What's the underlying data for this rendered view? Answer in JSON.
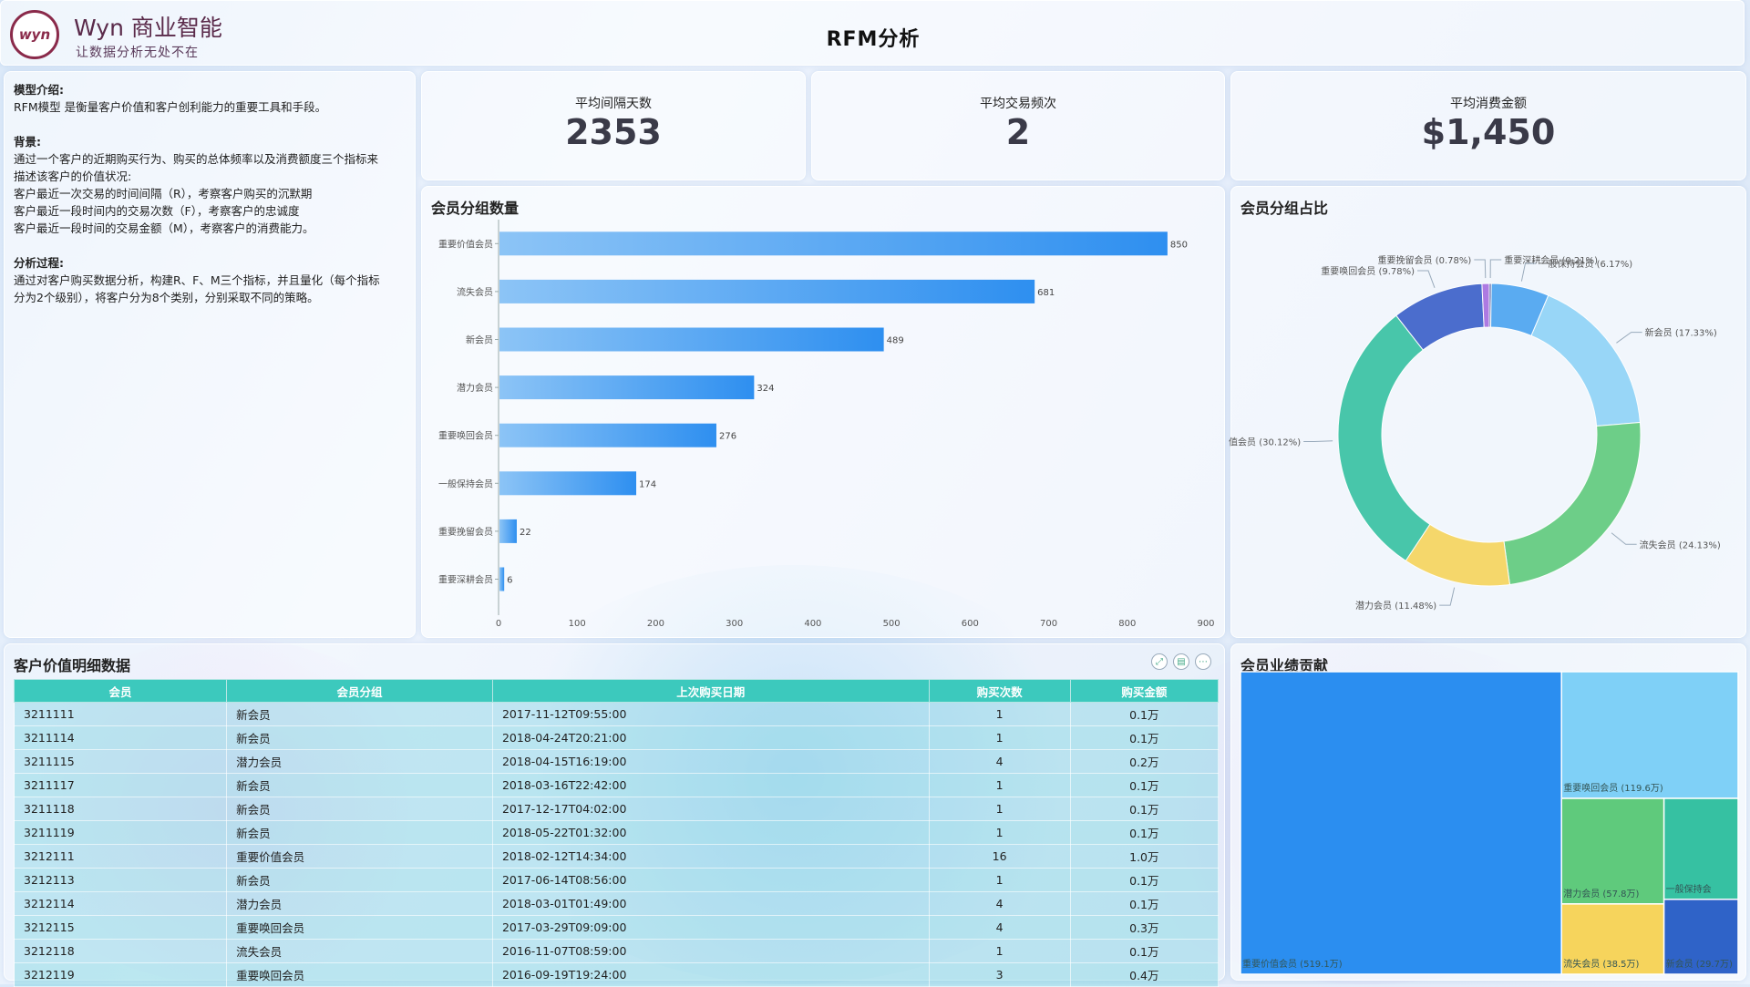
{
  "header": {
    "logo_text": "wyn",
    "brand_name": "Wyn 商业智能",
    "tagline": "让数据分析无处不在",
    "title": "RFM分析"
  },
  "intro": {
    "model_heading": "模型介绍:",
    "model_text": "RFM模型 是衡量客户价值和客户创利能力的重要工具和手段。",
    "background_heading": "背景:",
    "background_lines": [
      "通过一个客户的近期购买行为、购买的总体频率以及消费额度三个指标来",
      "描述该客户的价值状况:",
      "客户最近一次交易的时间间隔（R），考察客户购买的沉默期",
      "客户最近一段时间内的交易次数（F），考察客户的忠诚度",
      "客户最近一段时间的交易金额（M），考察客户的消费能力。"
    ],
    "process_heading": "分析过程:",
    "process_lines": [
      "通过对客户购买数据分析，构建R、F、M三个指标，并且量化（每个指标",
      "分为2个级别），将客户分为8个类别，分别采取不同的策略。"
    ]
  },
  "kpis": [
    {
      "label": "平均间隔天数",
      "value": "2353"
    },
    {
      "label": "平均交易频次",
      "value": "2"
    },
    {
      "label": "平均消费金额",
      "value": "$1,450"
    }
  ],
  "bar_title": "会员分组数量",
  "pie_title": "会员分组占比",
  "table_title": "客户价值明细数据",
  "tree_title": "会员业绩贡献",
  "chart_data": [
    {
      "type": "bar",
      "title": "会员分组数量",
      "categories": [
        "重要价值会员",
        "流失会员",
        "新会员",
        "潜力会员",
        "重要唤回会员",
        "一般保持会员",
        "重要挽留会员",
        "重要深耕会员"
      ],
      "values": [
        850,
        681,
        489,
        324,
        276,
        174,
        22,
        6
      ],
      "xlim": [
        0,
        900
      ],
      "xticks": [
        0,
        100,
        200,
        300,
        400,
        500,
        600,
        700,
        800,
        900
      ]
    },
    {
      "type": "pie",
      "title": "会员分组占比",
      "slices": [
        {
          "label": "重要深耕会员 (0.21%)",
          "value": 0.21,
          "color": "#2b3d8f"
        },
        {
          "label": "一般保持会员 (6.17%)",
          "value": 6.17,
          "color": "#4aa3f0"
        },
        {
          "label": "新会员 (17.33%)",
          "value": 17.33,
          "color": "#8fd3f7"
        },
        {
          "label": "流失会员 (24.13%)",
          "value": 24.13,
          "color": "#5fca7c"
        },
        {
          "label": "潜力会员 (11.48%)",
          "value": 11.48,
          "color": "#f6d45c"
        },
        {
          "label": "值会员 (30.12%)",
          "value": 30.12,
          "color": "#36c1a2"
        },
        {
          "label": "重要唤回会员 (9.78%)",
          "value": 9.78,
          "color": "#3a5fc8"
        },
        {
          "label": "重要挽留会员 (0.78%)",
          "value": 0.78,
          "color": "#a66de0"
        }
      ]
    },
    {
      "type": "treemap",
      "title": "会员业绩贡献",
      "items": [
        {
          "label": "重要价值会员 (519.1万)",
          "value": 519.1,
          "color": "#2b8ef0"
        },
        {
          "label": "重要唤回会员 (119.6万)",
          "value": 119.6,
          "color": "#7fd0f7"
        },
        {
          "label": "潜力会员 (57.8万)",
          "value": 57.8,
          "color": "#5fca7c"
        },
        {
          "label": "一般保持会",
          "value": 40,
          "color": "#36c1a2"
        },
        {
          "label": "流失会员 (38.5万)",
          "value": 38.5,
          "color": "#f6d45c"
        },
        {
          "label": "新会员 (29.7万)",
          "value": 29.7,
          "color": "#2f63c8"
        }
      ]
    }
  ],
  "table": {
    "headers": [
      "会员",
      "会员分组",
      "上次购买日期",
      "购买次数",
      "购买金额"
    ],
    "rows": [
      [
        "3211111",
        "新会员",
        "2017-11-12T09:55:00",
        "1",
        "0.1万"
      ],
      [
        "3211114",
        "新会员",
        "2018-04-24T20:21:00",
        "1",
        "0.1万"
      ],
      [
        "3211115",
        "潜力会员",
        "2018-04-15T16:19:00",
        "4",
        "0.2万"
      ],
      [
        "3211117",
        "新会员",
        "2018-03-16T22:42:00",
        "1",
        "0.1万"
      ],
      [
        "3211118",
        "新会员",
        "2017-12-17T04:02:00",
        "1",
        "0.1万"
      ],
      [
        "3211119",
        "新会员",
        "2018-05-22T01:32:00",
        "1",
        "0.1万"
      ],
      [
        "3212111",
        "重要价值会员",
        "2018-02-12T14:34:00",
        "16",
        "1.0万"
      ],
      [
        "3212113",
        "新会员",
        "2017-06-14T08:56:00",
        "1",
        "0.1万"
      ],
      [
        "3212114",
        "潜力会员",
        "2018-03-01T01:49:00",
        "4",
        "0.1万"
      ],
      [
        "3212115",
        "重要唤回会员",
        "2017-03-29T09:09:00",
        "4",
        "0.3万"
      ],
      [
        "3212118",
        "流失会员",
        "2016-11-07T08:59:00",
        "1",
        "0.1万"
      ],
      [
        "3212119",
        "重要唤回会员",
        "2016-09-19T19:24:00",
        "3",
        "0.4万"
      ]
    ]
  },
  "table_tools": [
    "fullscreen-icon",
    "export-icon",
    "more-icon"
  ]
}
